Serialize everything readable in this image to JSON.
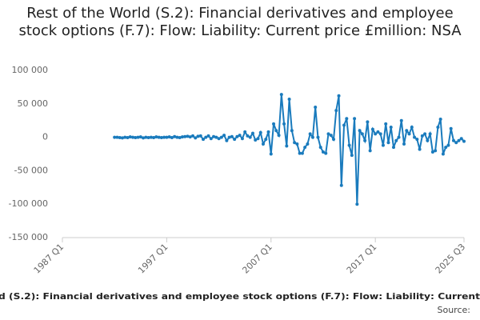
{
  "chart_data": {
    "type": "line",
    "title": "Rest of the World (S.2): Financial derivatives and employee stock options (F.7): Flow: Liability: Current price £million: NSA",
    "footer": "d (S.2): Financial derivatives and employee stock options (F.7): Flow: Liability: Current",
    "source": "Source:",
    "x": [
      "1992 Q1",
      "1992 Q2",
      "1992 Q3",
      "1992 Q4",
      "1993 Q1",
      "1993 Q2",
      "1993 Q3",
      "1993 Q4",
      "1994 Q1",
      "1994 Q2",
      "1994 Q3",
      "1994 Q4",
      "1995 Q1",
      "1995 Q2",
      "1995 Q3",
      "1995 Q4",
      "1996 Q1",
      "1996 Q2",
      "1996 Q3",
      "1996 Q4",
      "1997 Q1",
      "1997 Q2",
      "1997 Q3",
      "1997 Q4",
      "1998 Q1",
      "1998 Q2",
      "1998 Q3",
      "1998 Q4",
      "1999 Q1",
      "1999 Q2",
      "1999 Q3",
      "1999 Q4",
      "2000 Q1",
      "2000 Q2",
      "2000 Q3",
      "2000 Q4",
      "2001 Q1",
      "2001 Q2",
      "2001 Q3",
      "2001 Q4",
      "2002 Q1",
      "2002 Q2",
      "2002 Q3",
      "2002 Q4",
      "2003 Q1",
      "2003 Q2",
      "2003 Q3",
      "2003 Q4",
      "2004 Q1",
      "2004 Q2",
      "2004 Q3",
      "2004 Q4",
      "2005 Q1",
      "2005 Q2",
      "2005 Q3",
      "2005 Q4",
      "2006 Q1",
      "2006 Q2",
      "2006 Q3",
      "2006 Q4",
      "2007 Q1",
      "2007 Q2",
      "2007 Q3",
      "2007 Q4",
      "2008 Q1",
      "2008 Q2",
      "2008 Q3",
      "2008 Q4",
      "2009 Q1",
      "2009 Q2",
      "2009 Q3",
      "2009 Q4",
      "2010 Q1",
      "2010 Q2",
      "2010 Q3",
      "2010 Q4",
      "2011 Q1",
      "2011 Q2",
      "2011 Q3",
      "2011 Q4",
      "2012 Q1",
      "2012 Q2",
      "2012 Q3",
      "2012 Q4",
      "2013 Q1",
      "2013 Q2",
      "2013 Q3",
      "2013 Q4",
      "2014 Q1",
      "2014 Q2",
      "2014 Q3",
      "2014 Q4",
      "2015 Q1",
      "2015 Q2",
      "2015 Q3",
      "2015 Q4",
      "2016 Q1",
      "2016 Q2",
      "2016 Q3",
      "2016 Q4",
      "2017 Q1",
      "2017 Q2",
      "2017 Q3",
      "2017 Q4",
      "2018 Q1",
      "2018 Q2",
      "2018 Q3",
      "2018 Q4",
      "2019 Q1",
      "2019 Q2",
      "2019 Q3",
      "2019 Q4",
      "2020 Q1",
      "2020 Q2",
      "2020 Q3",
      "2020 Q4",
      "2021 Q1",
      "2021 Q2",
      "2021 Q3",
      "2021 Q4",
      "2022 Q1",
      "2022 Q2",
      "2022 Q3",
      "2022 Q4",
      "2023 Q1",
      "2023 Q2",
      "2023 Q3",
      "2023 Q4",
      "2024 Q1",
      "2024 Q2",
      "2024 Q3",
      "2024 Q4",
      "2025 Q1",
      "2025 Q2",
      "2025 Q3"
    ],
    "series": [
      {
        "color": "#1a7bbd",
        "values": [
          0,
          0,
          -500,
          -1000,
          0,
          -500,
          500,
          0,
          -500,
          0,
          500,
          -1000,
          0,
          -500,
          0,
          -500,
          500,
          0,
          -500,
          0,
          0,
          500,
          -500,
          1000,
          0,
          -500,
          500,
          1000,
          1500,
          500,
          2000,
          -1000,
          1500,
          2000,
          -3000,
          0,
          2000,
          -2000,
          1000,
          0,
          -2000,
          0,
          3000,
          -5000,
          0,
          1000,
          -3000,
          1000,
          3000,
          -2000,
          8000,
          2000,
          0,
          6000,
          -4000,
          -2000,
          7000,
          -10000,
          -3000,
          8000,
          -25000,
          20000,
          10000,
          3000,
          64000,
          20000,
          -13000,
          57000,
          10000,
          -8000,
          -10000,
          -24000,
          -24000,
          -15000,
          -10000,
          5000,
          0,
          45000,
          0,
          -15000,
          -22000,
          -24000,
          5000,
          3000,
          -3000,
          40000,
          62000,
          -72000,
          18000,
          28000,
          -12000,
          -27000,
          28000,
          -100000,
          10000,
          5000,
          -5000,
          23000,
          -20000,
          12000,
          5000,
          8000,
          5000,
          -12000,
          20000,
          -8000,
          15000,
          -15000,
          -5000,
          0,
          25000,
          -10000,
          10000,
          5000,
          15000,
          0,
          -3000,
          -18000,
          2000,
          5000,
          -5000,
          5000,
          -22000,
          -20000,
          15000,
          27000,
          -25000,
          -15000,
          -12000,
          13000,
          -5000,
          -8000,
          -5000,
          -2000,
          -6000
        ]
      }
    ],
    "xlim": [
      "1987 Q1",
      "2025 Q3"
    ],
    "xticks": [
      "1987 Q1",
      "1997 Q1",
      "2007 Q1",
      "2017 Q1",
      "2025 Q3"
    ],
    "ylim": [
      -150000,
      100000
    ],
    "yticks": [
      {
        "value": -150000,
        "label": "-150 000"
      },
      {
        "value": -100000,
        "label": "-100 000"
      },
      {
        "value": -50000,
        "label": "-50 000"
      },
      0,
      {
        "value": 50000,
        "label": "50 000"
      },
      {
        "value": 100000,
        "label": "100 000"
      }
    ],
    "grid": false
  }
}
